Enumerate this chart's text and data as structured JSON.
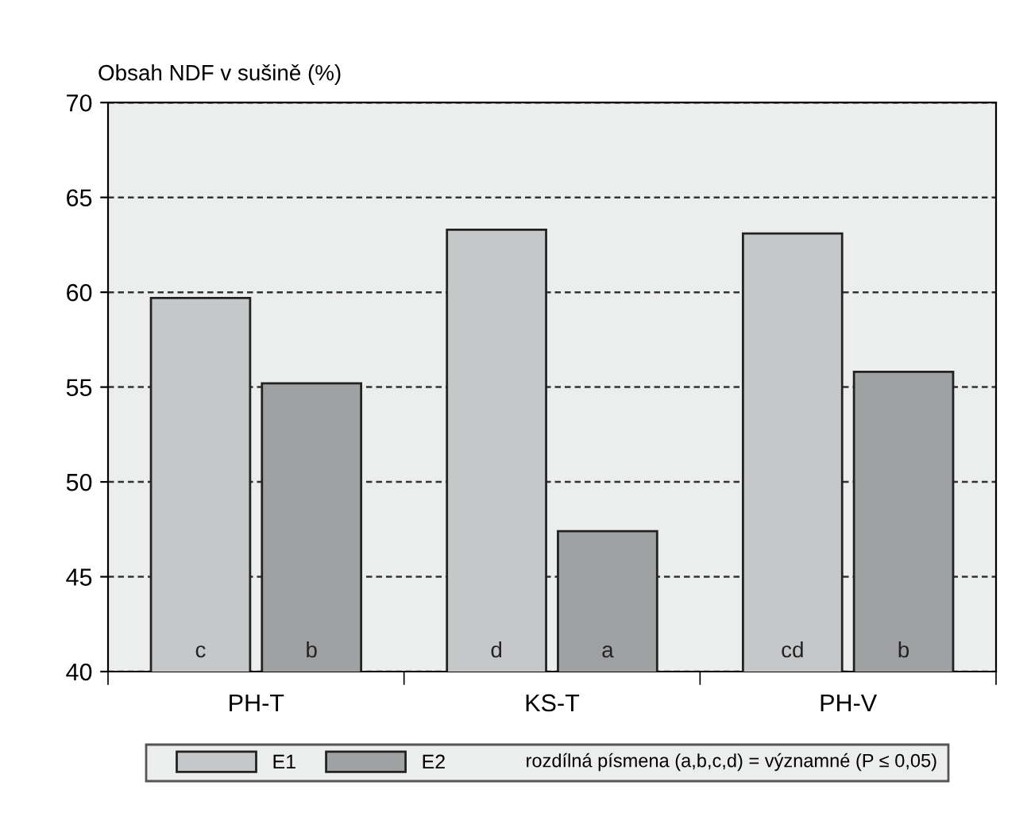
{
  "chart_data": {
    "type": "bar",
    "ylabel": "Obsah NDF v sušině (%)",
    "categories": [
      "PH-T",
      "KS-T",
      "PH-V"
    ],
    "series": [
      {
        "name": "E1",
        "color": "#c6c7c9",
        "values": [
          59.7,
          63.3,
          63.1
        ],
        "value_labels": [
          "c",
          "d",
          "cd"
        ]
      },
      {
        "name": "E2",
        "color": "#a0a1a3",
        "values": [
          55.2,
          47.4,
          55.8
        ],
        "value_labels": [
          "b",
          "a",
          "b"
        ]
      }
    ],
    "ylim": [
      40,
      70
    ],
    "yticks": [
      40,
      45,
      50,
      55,
      60,
      65,
      70
    ],
    "grid": "y",
    "legend": "bottom",
    "annotations": [
      "rozdílná písmena (a,b,c,d) = významné (P ≤ 0,05)"
    ]
  }
}
